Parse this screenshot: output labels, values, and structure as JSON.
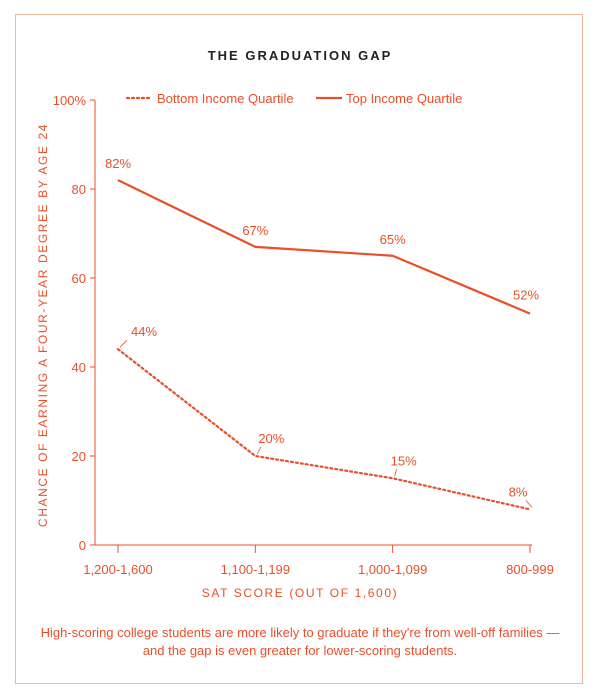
{
  "chart_data": {
    "type": "line",
    "title": "THE GRADUATION GAP",
    "xlabel": "SAT SCORE (OUT OF 1,600)",
    "ylabel": "CHANCE OF EARNING A FOUR-YEAR DEGREE BY AGE 24",
    "categories": [
      "1,200-1,600",
      "1,100-1,199",
      "1,000-1,099",
      "800-999"
    ],
    "ylim": [
      0,
      100
    ],
    "yticks": [
      {
        "value": 0,
        "label": "0"
      },
      {
        "value": 20,
        "label": "20"
      },
      {
        "value": 40,
        "label": "40"
      },
      {
        "value": 60,
        "label": "60"
      },
      {
        "value": 80,
        "label": "80"
      },
      {
        "value": 100,
        "label": "100%"
      }
    ],
    "series": [
      {
        "name": "Bottom Income Quartile",
        "style": "dotted",
        "values": [
          44,
          20,
          15,
          8
        ],
        "labels": [
          "44%",
          "20%",
          "15%",
          "8%"
        ]
      },
      {
        "name": "Top Income Quartile",
        "style": "solid",
        "values": [
          82,
          67,
          65,
          52
        ],
        "labels": [
          "82%",
          "67%",
          "65%",
          "52%"
        ]
      }
    ],
    "legend": "top",
    "grid": false,
    "caption": "High-scoring college students are more likely to graduate if they're from well-off families — and the gap is even greater for lower-scoring students."
  },
  "colors": {
    "accent": "#e8502a",
    "title": "#222222",
    "frame": "#f2b49c"
  }
}
